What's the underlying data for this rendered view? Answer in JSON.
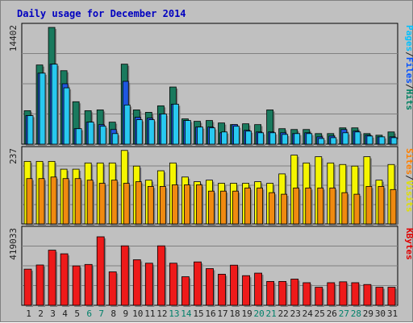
{
  "chart_data": {
    "type": "bar",
    "title": "Daily usage for December 2014",
    "categories": [
      "1",
      "2",
      "3",
      "4",
      "5",
      "6",
      "7",
      "8",
      "9",
      "10",
      "11",
      "12",
      "13",
      "14",
      "15",
      "16",
      "17",
      "18",
      "19",
      "20",
      "21",
      "22",
      "23",
      "24",
      "25",
      "26",
      "27",
      "28",
      "29",
      "30",
      "31"
    ],
    "weekend_days": [
      "6",
      "7",
      "13",
      "14",
      "20",
      "21",
      "27",
      "28"
    ],
    "panels": [
      {
        "name": "hits-files-pages",
        "ymax_label": "14402",
        "ymax": 14402,
        "right_labels": [
          {
            "text": "Pages",
            "color": "#00c0ff"
          },
          {
            "text": "/",
            "color": "#202020"
          },
          {
            "text": "Files",
            "color": "#0050ff"
          },
          {
            "text": "/",
            "color": "#202020"
          },
          {
            "text": "Hits",
            "color": "#008060"
          }
        ],
        "series": [
          {
            "name": "Hits",
            "color": "#1a7a5e",
            "values": [
              4100,
              9700,
              14300,
              9000,
              5200,
              4100,
              4200,
              2700,
              9800,
              4200,
              3900,
              4700,
              7000,
              3100,
              2800,
              2900,
              2600,
              2400,
              2500,
              2400,
              4200,
              1900,
              1800,
              1800,
              1300,
              1300,
              2000,
              2000,
              1300,
              1100,
              1500
            ]
          },
          {
            "name": "Files",
            "color": "#1f57e0",
            "values": [
              3500,
              8700,
              9800,
              7400,
              1900,
              2700,
              2400,
              1800,
              7700,
              3300,
              3200,
              3700,
              4900,
              2900,
              2100,
              2100,
              1400,
              2400,
              1700,
              1500,
              1500,
              1400,
              1300,
              1400,
              900,
              1000,
              1800,
              1600,
              1100,
              900,
              900
            ]
          },
          {
            "name": "Pages",
            "color": "#28c8f0",
            "values": [
              3500,
              8700,
              9800,
              6900,
              1900,
              2700,
              2200,
              1300,
              4800,
              3000,
              3000,
              3700,
              4900,
              2900,
              2100,
              2000,
              1500,
              2200,
              1600,
              1400,
              1400,
              1200,
              1300,
              1300,
              700,
              800,
              1400,
              1500,
              1000,
              900,
              800
            ]
          }
        ]
      },
      {
        "name": "visits-sites",
        "ymax_label": "237",
        "ymax": 237,
        "right_labels": [
          {
            "text": "Sites",
            "color": "#ff8000"
          },
          {
            "text": "/",
            "color": "#202020"
          },
          {
            "text": "Visits",
            "color": "#e0e000"
          }
        ],
        "series": [
          {
            "name": "Visits",
            "color": "#f5f500",
            "values": [
              200,
              200,
              200,
              175,
              175,
              195,
              195,
              195,
              235,
              185,
              140,
              170,
              195,
              150,
              135,
              140,
              130,
              130,
              130,
              135,
              130,
              160,
              220,
              195,
              215,
              195,
              190,
              185,
              215,
              140,
              190
            ]
          },
          {
            "name": "Sites",
            "color": "#f08a10",
            "values": [
              145,
              145,
              150,
              145,
              145,
              140,
              130,
              140,
              130,
              135,
              120,
              120,
              125,
              125,
              125,
              105,
              105,
              105,
              115,
              115,
              100,
              95,
              115,
              115,
              115,
              115,
              100,
              95,
              120,
              120,
              110
            ]
          }
        ]
      },
      {
        "name": "kbytes",
        "ymax_label": "419033",
        "ymax": 419033,
        "right_labels": [
          {
            "text": "KBytes",
            "color": "#e00000"
          }
        ],
        "series": [
          {
            "name": "KBytes",
            "color": "#ee1a1a",
            "values": [
              200000,
              223000,
              305000,
              285000,
              218000,
              226000,
              379000,
              185000,
              329000,
              252000,
              233000,
              329000,
              233000,
              158000,
              240000,
              203000,
              172000,
              222000,
              164000,
              178000,
              132000,
              132000,
              145000,
              125000,
              100000,
              125000,
              130000,
              125000,
              115000,
              100000,
              100000
            ]
          }
        ]
      }
    ]
  }
}
